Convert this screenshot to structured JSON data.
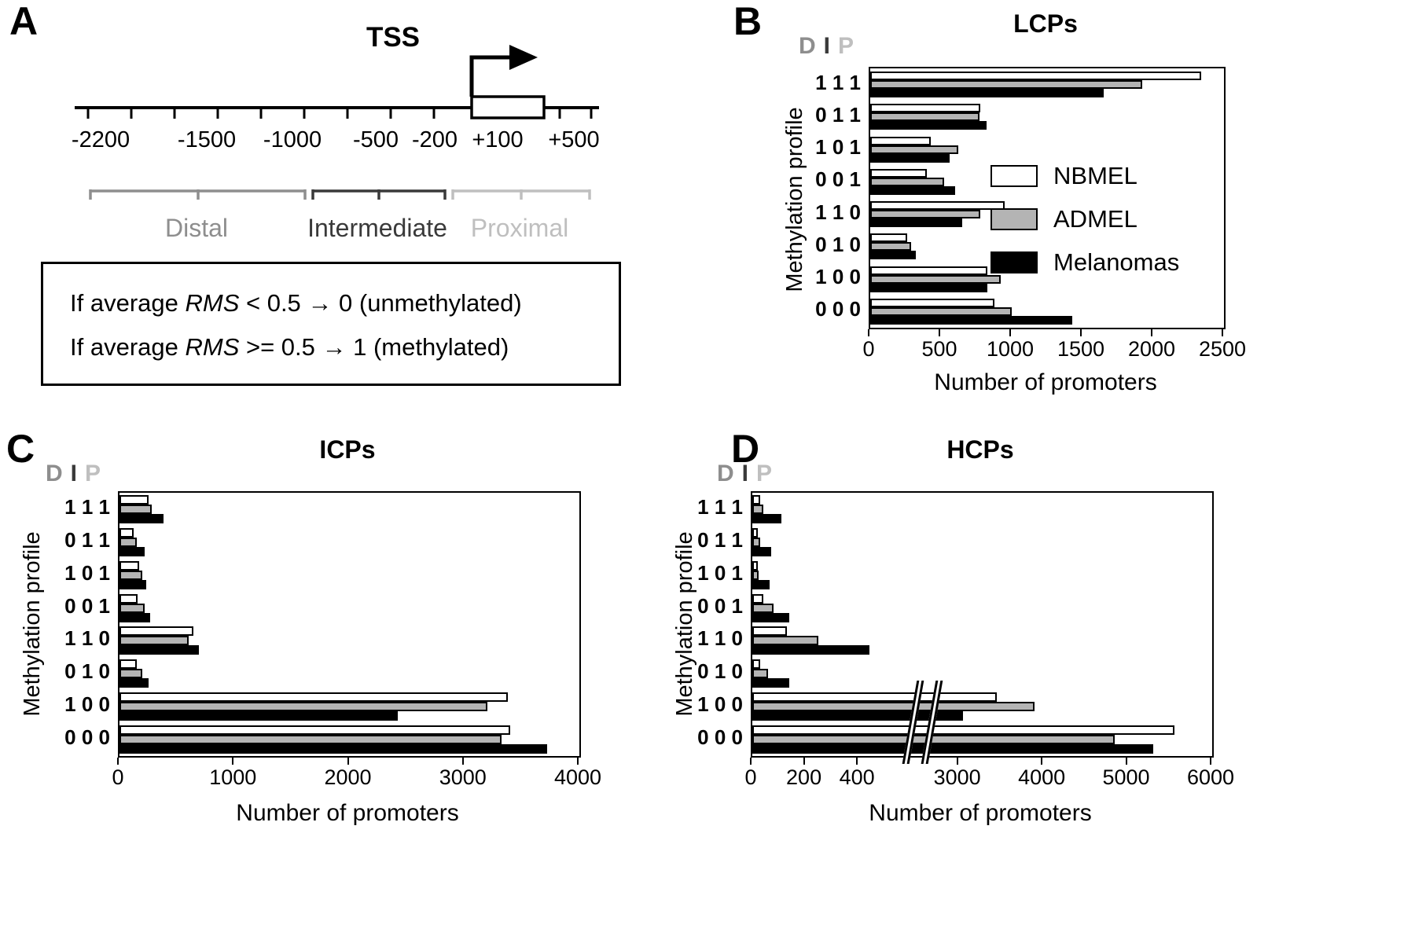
{
  "panel_a": {
    "letter": "A",
    "tss_label": "TSS",
    "scale_labels": [
      "-2200",
      "-1500",
      "-1000",
      "-500",
      "-200",
      "+100",
      "+500"
    ],
    "regions": [
      {
        "label": "Distal",
        "color": "#8e8e8e"
      },
      {
        "label": "Intermediate",
        "color": "#3a3a3a"
      },
      {
        "label": "Proximal",
        "color": "#bfbfbf"
      }
    ],
    "rules": [
      {
        "prefix": "If average ",
        "term": "RMS",
        "rest": " < 0.5 → 0 (unmethylated)"
      },
      {
        "prefix": "If average ",
        "term": "RMS",
        "rest": " >= 0.5 → 1 (methylated)"
      }
    ]
  },
  "dip": {
    "d": "D",
    "i": "I",
    "p": "P"
  },
  "legend": {
    "items": [
      {
        "label": "NBMEL",
        "fill": "#ffffff"
      },
      {
        "label": "ADMEL",
        "fill": "#b4b4b4"
      },
      {
        "label": "Melanomas",
        "fill": "#000000"
      }
    ]
  },
  "chart_data": [
    {
      "panel_letter": "B",
      "type": "bar",
      "orientation": "horizontal",
      "title": "LCPs",
      "xlabel": "Number of promoters",
      "ylabel": "Methylation profile",
      "categories": [
        "111",
        "011",
        "101",
        "001",
        "110",
        "010",
        "100",
        "000"
      ],
      "series": [
        {
          "name": "NBMEL",
          "fill": "#ffffff",
          "values": [
            2340,
            780,
            430,
            400,
            950,
            260,
            830,
            880
          ]
        },
        {
          "name": "ADMEL",
          "fill": "#b4b4b4",
          "values": [
            1920,
            770,
            620,
            520,
            780,
            290,
            920,
            1000
          ]
        },
        {
          "name": "Melanomas",
          "fill": "#000000",
          "values": [
            1650,
            820,
            560,
            600,
            650,
            320,
            830,
            1430
          ]
        }
      ],
      "xlim": [
        0,
        2500
      ],
      "xticks": [
        0,
        500,
        1000,
        1500,
        2000,
        2500
      ],
      "legend_position": "inside-right"
    },
    {
      "panel_letter": "C",
      "type": "bar",
      "orientation": "horizontal",
      "title": "ICPs",
      "xlabel": "Number of promoters",
      "ylabel": "Methylation profile",
      "categories": [
        "111",
        "011",
        "101",
        "001",
        "110",
        "010",
        "100",
        "000"
      ],
      "series": [
        {
          "name": "NBMEL",
          "fill": "#ffffff",
          "values": [
            250,
            120,
            170,
            160,
            640,
            150,
            3380,
            3400
          ]
        },
        {
          "name": "ADMEL",
          "fill": "#b4b4b4",
          "values": [
            280,
            150,
            200,
            220,
            600,
            200,
            3200,
            3320
          ]
        },
        {
          "name": "Melanomas",
          "fill": "#000000",
          "values": [
            380,
            220,
            230,
            270,
            690,
            250,
            2420,
            3720
          ]
        }
      ],
      "xlim": [
        0,
        4000
      ],
      "xticks": [
        0,
        1000,
        2000,
        3000,
        4000
      ]
    },
    {
      "panel_letter": "D",
      "type": "bar",
      "orientation": "horizontal",
      "title": "HCPs",
      "xlabel": "Number of promoters",
      "ylabel": "Methylation profile",
      "categories": [
        "111",
        "011",
        "101",
        "001",
        "110",
        "010",
        "100",
        "000"
      ],
      "series": [
        {
          "name": "NBMEL",
          "fill": "#ffffff",
          "values": [
            30,
            20,
            20,
            40,
            130,
            30,
            3450,
            5550
          ]
        },
        {
          "name": "ADMEL",
          "fill": "#b4b4b4",
          "values": [
            40,
            30,
            25,
            80,
            250,
            60,
            3900,
            4850
          ]
        },
        {
          "name": "Melanomas",
          "fill": "#000000",
          "values": [
            110,
            70,
            65,
            140,
            440,
            140,
            3050,
            5300
          ]
        }
      ],
      "xlim": [
        0,
        6000
      ],
      "axis_break": {
        "low_max": 400,
        "high_min": 3000,
        "low_ticks": [
          0,
          200,
          400
        ],
        "high_ticks": [
          3000,
          4000,
          5000,
          6000
        ],
        "low_frac": 0.231,
        "high_start_frac": 0.449,
        "break_frac": 0.345
      }
    }
  ]
}
